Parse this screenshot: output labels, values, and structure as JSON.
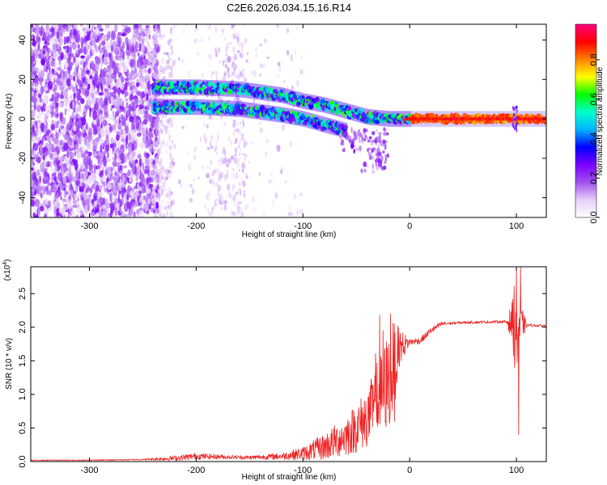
{
  "title": "C2E6.2026.034.15.16.R14",
  "chart_data": [
    {
      "type": "heatmap",
      "xlabel": "Height of straight line (km)",
      "ylabel": "Frequency (Hz)",
      "xlim": [
        -355,
        128
      ],
      "ylim": [
        -50,
        48
      ],
      "xticks": [
        -300,
        -200,
        -100,
        0,
        100
      ],
      "xtick_labels": [
        "-300",
        "-200",
        "-100",
        "0",
        "100"
      ],
      "yticks": [
        -40,
        -20,
        0,
        20,
        40
      ],
      "ytick_labels": [
        "-40",
        "-20",
        "0",
        "20",
        "40"
      ],
      "colorbar": {
        "label": "Normalized spectral amplitude",
        "range": [
          0,
          0.98
        ],
        "ticks": [
          0.0,
          0.2,
          0.4,
          0.6,
          0.8
        ],
        "tick_labels": [
          "0.0",
          "0.2",
          "0.4",
          "0.6",
          "0.8"
        ],
        "colors": [
          "#ffffff",
          "#e6cef8",
          "#a050ee",
          "#7a00ff",
          "#0000ff",
          "#00b4ff",
          "#00ffcc",
          "#00ff00",
          "#ffff00",
          "#ff8000",
          "#ff0000",
          "#ff0080"
        ]
      },
      "tracks": [
        {
          "name": "",
          "points": [
            [
              -240,
              6
            ],
            [
              -200,
              6
            ],
            [
              -160,
              5
            ],
            [
              -120,
              2
            ],
            [
              -100,
              0
            ],
            [
              -80,
              -3
            ],
            [
              -60,
              -6
            ]
          ]
        },
        {
          "name": "",
          "points": [
            [
              -240,
              16
            ],
            [
              -200,
              16
            ],
            [
              -160,
              15
            ],
            [
              -120,
              12
            ],
            [
              -100,
              9
            ],
            [
              -80,
              7
            ],
            [
              -60,
              4
            ],
            [
              -40,
              1
            ],
            [
              -20,
              0
            ],
            [
              0,
              0
            ],
            [
              50,
              0
            ],
            [
              128,
              0
            ]
          ]
        }
      ],
      "grid": false
    },
    {
      "type": "line",
      "xlabel": "Height of straight line (km)",
      "ylabel": "SNR (10 * v/v)",
      "multiplier_label": "(x10",
      "multiplier_exponent": "4",
      "multiplier_close": ")",
      "xlim": [
        -355,
        128
      ],
      "ylim": [
        0,
        2.9
      ],
      "xticks": [
        -300,
        -200,
        -100,
        0,
        100
      ],
      "xtick_labels": [
        "-300",
        "-200",
        "-100",
        "0",
        "100"
      ],
      "yticks": [
        0,
        0.5,
        1.0,
        1.5,
        2.0,
        2.5
      ],
      "ytick_labels": [
        "0.0",
        "0.5",
        "1.0",
        "1.5",
        "2.0",
        "2.5"
      ],
      "series_color": "#ee2222",
      "trend": {
        "x": [
          -355,
          -300,
          -250,
          -220,
          -200,
          -150,
          -120,
          -100,
          -80,
          -60,
          -50,
          -40,
          -30,
          -20,
          -15,
          -10,
          0,
          10,
          20,
          30,
          50,
          80,
          97,
          100,
          103,
          110,
          128
        ],
        "y": [
          0.02,
          0.02,
          0.03,
          0.05,
          0.08,
          0.06,
          0.08,
          0.12,
          0.22,
          0.38,
          0.5,
          0.65,
          0.9,
          1.2,
          1.4,
          1.7,
          1.78,
          1.8,
          1.95,
          2.05,
          2.07,
          2.08,
          2.08,
          2.05,
          2.05,
          2.03,
          2.02
        ]
      },
      "noise": {
        "x": [
          -355,
          -250,
          -220,
          -200,
          -170,
          -150,
          -120,
          -100,
          -80,
          -60,
          -40,
          -30,
          -20,
          -15,
          -10,
          0,
          20,
          40,
          90,
          96,
          100,
          104,
          110,
          128
        ],
        "amp": [
          0.005,
          0.01,
          0.04,
          0.05,
          0.03,
          0.03,
          0.05,
          0.1,
          0.2,
          0.3,
          0.45,
          0.55,
          0.75,
          0.7,
          0.3,
          0.05,
          0.05,
          0.02,
          0.02,
          0.3,
          1.0,
          0.3,
          0.02,
          0.02
        ]
      },
      "spikes": [
        [
          -28,
          2.18
        ],
        [
          -25,
          1.95
        ],
        [
          -18,
          2.2
        ],
        [
          -14,
          0.6
        ],
        [
          100,
          2.9
        ],
        [
          102,
          0.4
        ],
        [
          104,
          2.9
        ]
      ],
      "grid": false
    }
  ]
}
